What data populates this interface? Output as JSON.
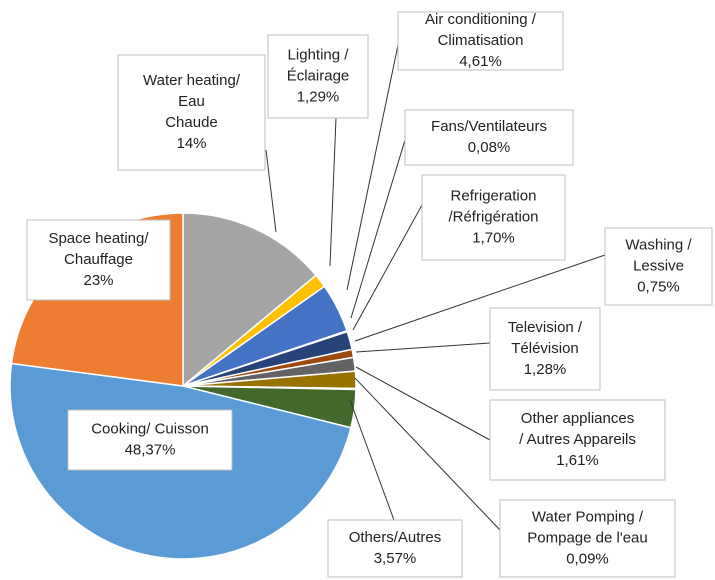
{
  "chart_data": {
    "type": "pie",
    "categories": [
      [
        "Water heating/",
        "Eau",
        "Chaude"
      ],
      [
        "Lighting /",
        "Éclairage"
      ],
      [
        "Air conditioning /",
        "Climatisation"
      ],
      [
        "Fans/Ventilateurs"
      ],
      [
        "Refrigeration",
        "/Réfrigération"
      ],
      [
        "Washing  /",
        "Lessive"
      ],
      [
        "Television /",
        "Télévision"
      ],
      [
        "Other appliances",
        "/ Autres Appareils"
      ],
      [
        "Water Pomping /",
        "Pompage de l'eau"
      ],
      [
        "Others/Autres"
      ],
      [
        "Cooking/ Cuisson"
      ],
      [
        "Space heating/",
        "Chauffage"
      ]
    ],
    "values": [
      14,
      1.29,
      4.61,
      0.08,
      1.7,
      0.75,
      1.28,
      1.61,
      0.09,
      3.57,
      48.37,
      23
    ],
    "value_labels": [
      "14%",
      "1,29%",
      "4,61%",
      "0,08%",
      "1,70%",
      "0,75%",
      "1,28%",
      "1,61%",
      "0,09%",
      "3,57%",
      "48,37%",
      "23%"
    ],
    "colors": [
      "#a5a5a5",
      "#ffc000",
      "#4472c4",
      "#70ad47",
      "#264478",
      "#9e480e",
      "#636363",
      "#997300",
      "#255e91",
      "#43682b",
      "#5b9bd5",
      "#ed7d31"
    ]
  }
}
